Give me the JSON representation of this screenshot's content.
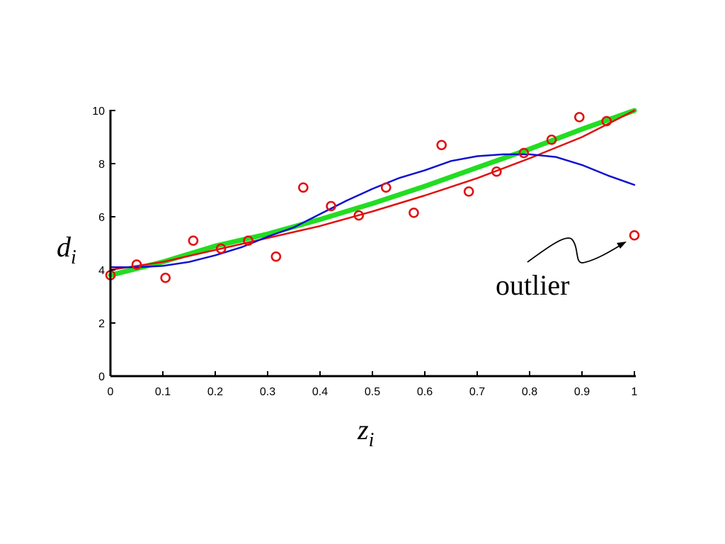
{
  "chart_data": {
    "type": "scatter",
    "title": "",
    "xlabel": "z",
    "xlabel_sub": "i",
    "ylabel": "d",
    "ylabel_sub": "i",
    "xlim": [
      0,
      1
    ],
    "ylim": [
      0,
      10
    ],
    "xticks": [
      "0",
      "0.1",
      "0.2",
      "0.3",
      "0.4",
      "0.5",
      "0.6",
      "0.7",
      "0.8",
      "0.9",
      "1"
    ],
    "yticks": [
      "0",
      "2",
      "4",
      "6",
      "8",
      "10"
    ],
    "grid": false,
    "legend": "none",
    "series": [
      {
        "kind": "points",
        "marker": "circle-open",
        "color": "#e01010",
        "x": [
          0,
          0.05,
          0.105,
          0.158,
          0.211,
          0.263,
          0.316,
          0.368,
          0.421,
          0.474,
          0.526,
          0.579,
          0.632,
          0.684,
          0.737,
          0.789,
          0.842,
          0.895,
          0.947,
          1.0
        ],
        "y": [
          3.8,
          4.2,
          3.7,
          5.1,
          4.8,
          5.1,
          4.5,
          7.1,
          6.4,
          6.05,
          7.1,
          6.15,
          8.7,
          6.95,
          7.7,
          8.4,
          8.9,
          9.75,
          9.6,
          5.3
        ]
      },
      {
        "kind": "line",
        "color": "#22dd22",
        "width": 7,
        "x": [
          0,
          0.1,
          0.2,
          0.3,
          0.4,
          0.5,
          0.6,
          0.7,
          0.8,
          0.9,
          1.0
        ],
        "y": [
          3.8,
          4.3,
          4.9,
          5.35,
          5.9,
          6.5,
          7.15,
          7.85,
          8.55,
          9.3,
          10.0
        ]
      },
      {
        "kind": "line",
        "color": "#e01010",
        "width": 2.5,
        "x": [
          0,
          0.1,
          0.2,
          0.3,
          0.4,
          0.5,
          0.6,
          0.7,
          0.8,
          0.9,
          1.0
        ],
        "y": [
          4.0,
          4.3,
          4.75,
          5.2,
          5.65,
          6.2,
          6.8,
          7.45,
          8.2,
          9.0,
          10.0
        ]
      },
      {
        "kind": "line",
        "color": "#1010d0",
        "width": 2.5,
        "x": [
          0,
          0.05,
          0.1,
          0.15,
          0.2,
          0.25,
          0.3,
          0.35,
          0.4,
          0.45,
          0.5,
          0.55,
          0.6,
          0.65,
          0.7,
          0.75,
          0.8,
          0.85,
          0.9,
          0.95,
          1.0
        ],
        "y": [
          4.1,
          4.1,
          4.15,
          4.3,
          4.55,
          4.85,
          5.25,
          5.6,
          6.1,
          6.6,
          7.05,
          7.45,
          7.75,
          8.1,
          8.28,
          8.35,
          8.35,
          8.25,
          7.95,
          7.55,
          7.2
        ]
      }
    ],
    "annotations": [
      {
        "text": "outlier",
        "target_x": 0.985,
        "target_y": 5.15
      }
    ]
  }
}
